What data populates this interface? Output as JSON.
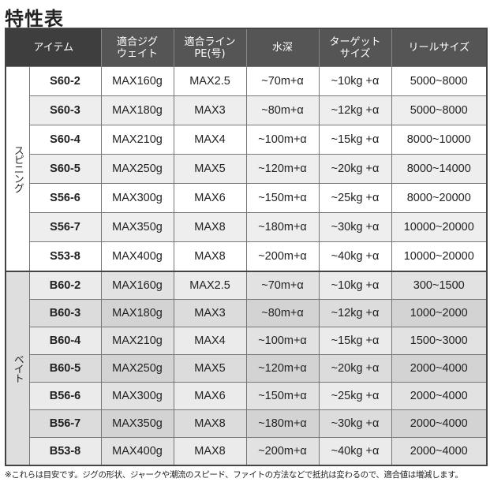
{
  "title": "特性表",
  "headers": [
    "アイテム",
    "適合ジグ\nウェイト",
    "適合ライン\nPE(号)",
    "水深",
    "ターゲット\nサイズ",
    "リールサイズ"
  ],
  "groups": [
    {
      "label": "スピニング",
      "rows": [
        [
          "S60-2",
          "MAX160g",
          "MAX2.5",
          "~70m+α",
          "~10kg +α",
          "5000~8000"
        ],
        [
          "S60-3",
          "MAX180g",
          "MAX3",
          "~80m+α",
          "~12kg +α",
          "5000~8000"
        ],
        [
          "S60-4",
          "MAX210g",
          "MAX4",
          "~100m+α",
          "~15kg +α",
          "8000~10000"
        ],
        [
          "S60-5",
          "MAX250g",
          "MAX5",
          "~120m+α",
          "~20kg +α",
          "8000~14000"
        ],
        [
          "S56-6",
          "MAX300g",
          "MAX6",
          "~150m+α",
          "~25kg +α",
          "8000~20000"
        ],
        [
          "S56-7",
          "MAX350g",
          "MAX8",
          "~180m+α",
          "~30kg +α",
          "10000~20000"
        ],
        [
          "S53-8",
          "MAX400g",
          "MAX8",
          "~200m+α",
          "~40kg +α",
          "10000~20000"
        ]
      ]
    },
    {
      "label": "ベイト",
      "rows": [
        [
          "B60-2",
          "MAX160g",
          "MAX2.5",
          "~70m+α",
          "~10kg +α",
          "300~1500"
        ],
        [
          "B60-3",
          "MAX180g",
          "MAX3",
          "~80m+α",
          "~12kg +α",
          "1000~2000"
        ],
        [
          "B60-4",
          "MAX210g",
          "MAX4",
          "~100m+α",
          "~15kg +α",
          "1500~3000"
        ],
        [
          "B60-5",
          "MAX250g",
          "MAX5",
          "~120m+α",
          "~20kg +α",
          "2000~4000"
        ],
        [
          "B56-6",
          "MAX300g",
          "MAX6",
          "~150m+α",
          "~25kg +α",
          "2000~4000"
        ],
        [
          "B56-7",
          "MAX350g",
          "MAX8",
          "~180m+α",
          "~30kg +α",
          "2000~4000"
        ],
        [
          "B53-8",
          "MAX400g",
          "MAX8",
          "~200m+α",
          "~40kg +α",
          "2000~4000"
        ]
      ]
    }
  ],
  "note": "※これらは目安です。ジグの形状、ジャークや潮流のスピード、ファイトの方法などで抵抗は変わるので、適合値は増減します。"
}
